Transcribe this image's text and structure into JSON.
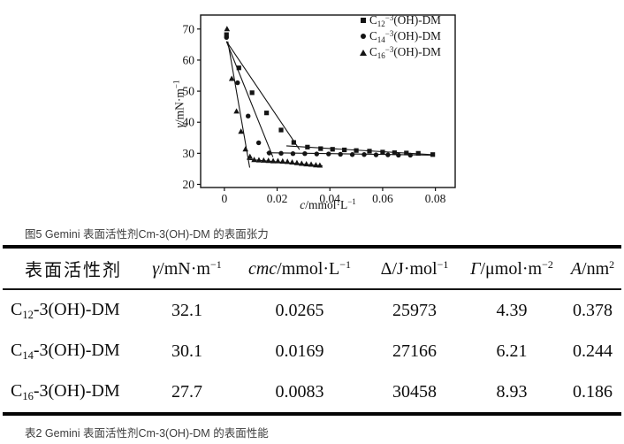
{
  "figure": {
    "caption": "图5 Gemini 表面活性剂Cm-3(OH)-DM 的表面张力"
  },
  "chart_data": {
    "type": "scatter",
    "title": "",
    "xlabel_parts": {
      "sym": "c",
      "unit": "/mmol·L",
      "sup": "−1"
    },
    "ylabel_parts": {
      "sym": "γ",
      "unit": "/mN·m",
      "sup": "−1"
    },
    "xlim": [
      -0.009,
      0.0875
    ],
    "ylim": [
      19,
      74.5
    ],
    "xticks": {
      "values": [
        0,
        0.02,
        0.04,
        0.06,
        0.08
      ],
      "labels": [
        "0",
        "0.02",
        "0.04",
        "0.06",
        "0.08"
      ]
    },
    "yticks": [
      20,
      30,
      40,
      50,
      60,
      70
    ],
    "grid": false,
    "legend_position": "top-right-inside",
    "axis_color": "#141414",
    "series": [
      {
        "label": {
          "pre": "C",
          "sub": "12",
          "sup": "−3",
          "suf": "(OH)-DM"
        },
        "marker": "square",
        "points": [
          [
            0.0008,
            68.2
          ],
          [
            0.0055,
            57.5
          ],
          [
            0.0105,
            49.5
          ],
          [
            0.016,
            43
          ],
          [
            0.0215,
            37.5
          ],
          [
            0.0263,
            33.5
          ],
          [
            0.0315,
            32
          ],
          [
            0.0365,
            31.5
          ],
          [
            0.041,
            31.3
          ],
          [
            0.0455,
            31.1
          ],
          [
            0.05,
            30.9
          ],
          [
            0.055,
            30.7
          ],
          [
            0.06,
            30.4
          ],
          [
            0.0645,
            30.2
          ],
          [
            0.069,
            30.1
          ],
          [
            0.0735,
            30
          ],
          [
            0.079,
            29.6
          ]
        ],
        "fit_lines": [
          [
            [
              0.0008,
              66
            ],
            [
              0.0285,
              31.2
            ]
          ],
          [
            [
              0.0235,
              32.4
            ],
            [
              0.0798,
              29.5
            ]
          ]
        ]
      },
      {
        "label": {
          "pre": "C",
          "sub": "14",
          "sup": "−3",
          "suf": "(OH)-DM"
        },
        "marker": "circle",
        "points": [
          [
            0.0008,
            67.3
          ],
          [
            0.005,
            52.7
          ],
          [
            0.009,
            42
          ],
          [
            0.013,
            33.4
          ],
          [
            0.017,
            30.1
          ],
          [
            0.0215,
            30
          ],
          [
            0.026,
            29.9
          ],
          [
            0.0305,
            29.9
          ],
          [
            0.035,
            29.8
          ],
          [
            0.0395,
            29.8
          ],
          [
            0.044,
            29.7
          ],
          [
            0.0485,
            29.6
          ],
          [
            0.053,
            29.6
          ],
          [
            0.0575,
            29.5
          ],
          [
            0.062,
            29.5
          ],
          [
            0.066,
            29.4
          ],
          [
            0.0705,
            29.4
          ]
        ],
        "fit_lines": [
          [
            [
              0.0008,
              66
            ],
            [
              0.0184,
              28.8
            ]
          ],
          [
            [
              0.016,
              30.2
            ],
            [
              0.0798,
              29.4
            ]
          ]
        ]
      },
      {
        "label": {
          "pre": "C",
          "sub": "16",
          "sup": "−3",
          "suf": "(OH)-DM"
        },
        "marker": "triangle",
        "points": [
          [
            0.001,
            70
          ],
          [
            0.0028,
            54
          ],
          [
            0.0046,
            43.5
          ],
          [
            0.0063,
            37
          ],
          [
            0.008,
            31.3
          ],
          [
            0.0097,
            28.9
          ],
          [
            0.0113,
            27.9
          ],
          [
            0.0131,
            27.8
          ],
          [
            0.0149,
            27.7
          ],
          [
            0.0167,
            27.6
          ],
          [
            0.0185,
            27.5
          ],
          [
            0.0203,
            27.5
          ],
          [
            0.0221,
            27.4
          ],
          [
            0.0239,
            27.3
          ],
          [
            0.0257,
            27.1
          ],
          [
            0.0275,
            26.9
          ],
          [
            0.0293,
            26.7
          ],
          [
            0.0311,
            26.5
          ],
          [
            0.0329,
            26.4
          ],
          [
            0.0347,
            26.2
          ],
          [
            0.0362,
            26.1
          ]
        ],
        "fit_lines": [
          [
            [
              0.0013,
              66
            ],
            [
              0.0096,
              25.4
            ]
          ],
          [
            [
              0.0085,
              28.1
            ],
            [
              0.0372,
              26
            ]
          ]
        ]
      }
    ]
  },
  "table": {
    "caption": "表2 Gemini 表面活性剂Cm-3(OH)-DM 的表面性能",
    "columns": [
      {
        "label": "表面活性剂"
      },
      {
        "sym": "γ",
        "unit": "/mN·m",
        "sup": "−1"
      },
      {
        "sym": "cmc",
        "unit": "/mmol·L",
        "sup": "−1"
      },
      {
        "sym": "Δ",
        "unit": "/J·mol",
        "sup": "−1"
      },
      {
        "sym": "Γ",
        "unit": "/μmol·m",
        "sup": "−2"
      },
      {
        "sym": "A",
        "unit": "/nm",
        "sup": "2"
      }
    ],
    "rows": [
      {
        "name": {
          "pre": "C",
          "sub": "12",
          "suf": "-3(OH)-DM"
        },
        "values": [
          "32.1",
          "0.0265",
          "25973",
          "4.39",
          "0.378"
        ]
      },
      {
        "name": {
          "pre": "C",
          "sub": "14",
          "suf": "-3(OH)-DM"
        },
        "values": [
          "30.1",
          "0.0169",
          "27166",
          "6.21",
          "0.244"
        ]
      },
      {
        "name": {
          "pre": "C",
          "sub": "16",
          "suf": "-3(OH)-DM"
        },
        "values": [
          "27.7",
          "0.0083",
          "30458",
          "8.93",
          "0.186"
        ]
      }
    ]
  }
}
